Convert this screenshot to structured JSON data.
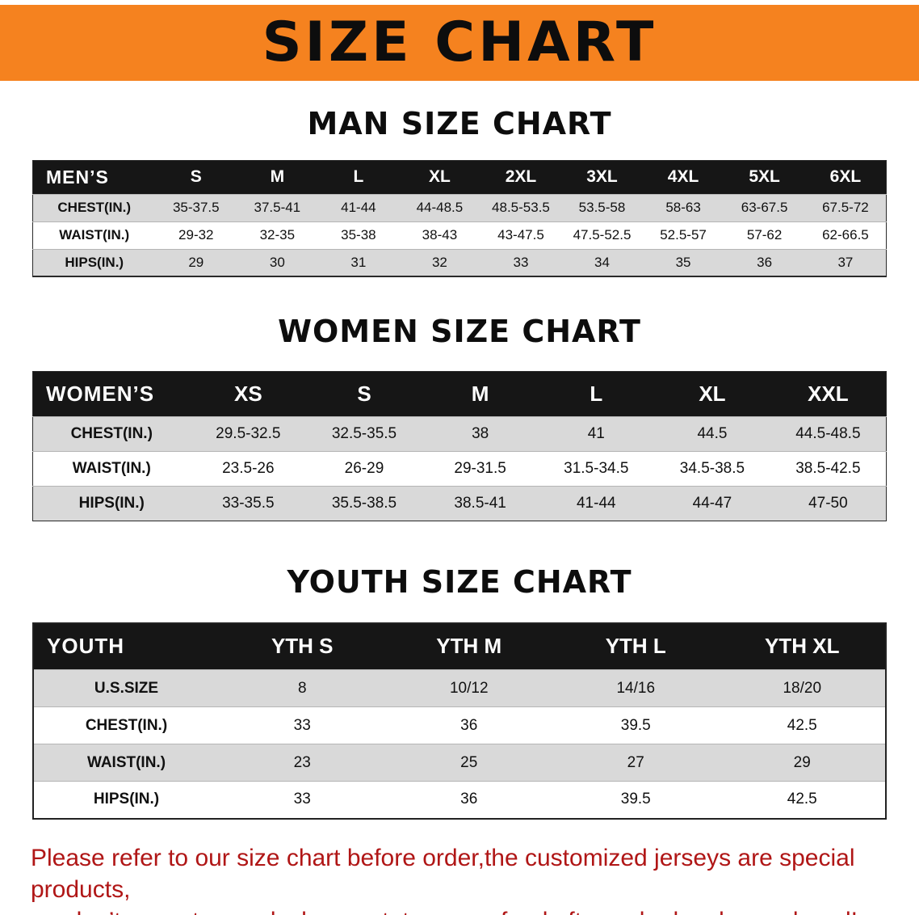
{
  "banner": {
    "title": "SIZE CHART"
  },
  "sections": {
    "man": {
      "heading": "MAN SIZE CHART"
    },
    "women": {
      "heading": "WOMEN SIZE CHART"
    },
    "youth": {
      "heading": "YOUTH SIZE CHART"
    }
  },
  "tables": {
    "man": {
      "header": [
        "MEN’S",
        "S",
        "M",
        "L",
        "XL",
        "2XL",
        "3XL",
        "4XL",
        "5XL",
        "6XL"
      ],
      "rows": [
        {
          "label": "CHEST(IN.)",
          "values": [
            "35-37.5",
            "37.5-41",
            "41-44",
            "44-48.5",
            "48.5-53.5",
            "53.5-58",
            "58-63",
            "63-67.5",
            "67.5-72"
          ]
        },
        {
          "label": "WAIST(IN.)",
          "values": [
            "29-32",
            "32-35",
            "35-38",
            "38-43",
            "43-47.5",
            "47.5-52.5",
            "52.5-57",
            "57-62",
            "62-66.5"
          ]
        },
        {
          "label": "HIPS(IN.)",
          "values": [
            "29",
            "30",
            "31",
            "32",
            "33",
            "34",
            "35",
            "36",
            "37"
          ]
        }
      ]
    },
    "women": {
      "header": [
        "WOMEN’S",
        "XS",
        "S",
        "M",
        "L",
        "XL",
        "XXL"
      ],
      "rows": [
        {
          "label": "CHEST(IN.)",
          "values": [
            "29.5-32.5",
            "32.5-35.5",
            "38",
            "41",
            "44.5",
            "44.5-48.5"
          ]
        },
        {
          "label": "WAIST(IN.)",
          "values": [
            "23.5-26",
            "26-29",
            "29-31.5",
            "31.5-34.5",
            "34.5-38.5",
            "38.5-42.5"
          ]
        },
        {
          "label": "HIPS(IN.)",
          "values": [
            "33-35.5",
            "35.5-38.5",
            "38.5-41",
            "41-44",
            "44-47",
            "47-50"
          ]
        }
      ]
    },
    "youth": {
      "header": [
        "YOUTH",
        "YTH S",
        "YTH M",
        "YTH L",
        "YTH XL"
      ],
      "rows": [
        {
          "label": "U.S.SIZE",
          "values": [
            "8",
            "10/12",
            "14/16",
            "18/20"
          ]
        },
        {
          "label": "CHEST(IN.)",
          "values": [
            "33",
            "36",
            "39.5",
            "42.5"
          ]
        },
        {
          "label": "WAIST(IN.)",
          "values": [
            "23",
            "25",
            "27",
            "29"
          ]
        },
        {
          "label": "HIPS(IN.)",
          "values": [
            "33",
            "36",
            "39.5",
            "42.5"
          ]
        }
      ]
    }
  },
  "footer": {
    "line1": "Please refer to our size chart before order,the customized jerseys are special products,",
    "line2": "we don’t accept cancel, change, teturn or refund after order has been placed!"
  },
  "colors": {
    "banner-bg": "#F5821F",
    "table-header-bg": "#161616",
    "row-stripe": "#d9d9d9",
    "notice-red": "#b01616",
    "text-black": "#111111"
  }
}
